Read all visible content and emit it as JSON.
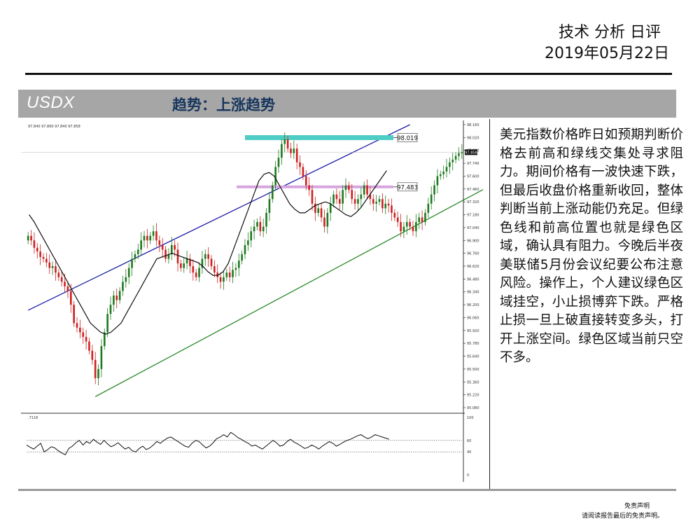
{
  "header": {
    "title": "技术 分析 日评",
    "date": "2019年05月22日"
  },
  "band": {
    "symbol": "USDX",
    "trend": "趋势：上涨趋势"
  },
  "analysis": "美元指数价格昨日如预期判断价格去前高和绿线交集处寻求阻力。期间价格有一波快速下跌，但最后收盘价格重新收回，整体判断当前上涨动能仍充足。但绿色线和前高位置也就是绿色区域，确认具有阻力。今晚后半夜美联储5月份会议纪要公布注意风险。操作上，个人建议绿色区域挂空，小止损博弈下跌。严格止损一旦上破直接转变多头，打开上涨空间。绿色区域当前只空不多。",
  "footer": {
    "line1": "免责声明",
    "line2": "请阅读报告最后的免责声明。"
  },
  "chart_data": {
    "type": "line",
    "symbol": "USDX",
    "info_line": "97.840  97.860  97.840  97.858",
    "ylim": [
      95.08,
      98.16
    ],
    "y_ticks": [
      "98.160",
      "98.020",
      "97.880",
      "97.740",
      "97.600",
      "97.460",
      "97.320",
      "97.180",
      "97.040",
      "96.900",
      "96.760",
      "96.620",
      "96.480",
      "96.340",
      "96.200",
      "96.060",
      "95.920",
      "95.780",
      "95.640",
      "95.500",
      "95.360",
      "95.220",
      "95.080"
    ],
    "last_price_label": "97.858",
    "levels": [
      {
        "name": "resistance",
        "value": 98.019,
        "label": "98.019",
        "color": "#4ecdc4"
      },
      {
        "name": "support",
        "value": 97.483,
        "label": "97.483",
        "color": "#d7a6df"
      }
    ],
    "candle_colors": {
      "up": "#1f7a1f",
      "down": "#cc2222"
    },
    "lines": [
      {
        "name": "upper-channel",
        "color": "#1c1ca8",
        "from": [
          0,
          96.14
        ],
        "to": [
          125,
          98.16
        ]
      },
      {
        "name": "lower-channel",
        "color": "#2e8b2e",
        "from": [
          22,
          95.2
        ],
        "to": [
          182,
          98.04
        ]
      }
    ],
    "close": [
      96.95,
      96.9,
      96.82,
      96.78,
      96.72,
      96.7,
      96.66,
      96.6,
      96.62,
      96.55,
      96.5,
      96.45,
      96.4,
      96.35,
      96.2,
      96.0,
      95.95,
      95.9,
      95.85,
      95.8,
      95.7,
      95.6,
      95.4,
      95.5,
      95.75,
      95.9,
      96.1,
      96.2,
      96.3,
      96.25,
      96.35,
      96.45,
      96.5,
      96.6,
      96.7,
      96.75,
      96.8,
      96.9,
      96.95,
      96.9,
      96.95,
      97.0,
      96.9,
      96.85,
      96.8,
      96.7,
      96.75,
      96.85,
      96.8,
      96.65,
      96.6,
      96.65,
      96.7,
      96.62,
      96.55,
      96.5,
      96.6,
      96.7,
      96.75,
      96.7,
      96.62,
      96.55,
      96.5,
      96.45,
      96.5,
      96.55,
      96.5,
      96.58,
      96.6,
      96.68,
      96.75,
      96.85,
      96.9,
      97.0,
      97.05,
      97.1,
      97.0,
      97.05,
      97.2,
      97.35,
      97.5,
      97.7,
      97.8,
      97.95,
      98.0,
      97.9,
      97.85,
      97.9,
      97.75,
      97.7,
      97.6,
      97.5,
      97.45,
      97.3,
      97.2,
      97.25,
      97.15,
      97.05,
      97.2,
      97.3,
      97.4,
      97.35,
      97.3,
      97.45,
      97.5,
      97.45,
      97.35,
      97.3,
      97.35,
      97.4,
      97.5,
      97.4,
      97.35,
      97.3,
      97.32,
      97.35,
      97.25,
      97.3,
      97.28,
      97.2,
      97.15,
      97.1,
      97.0,
      97.05,
      97.1,
      97.05,
      97.0,
      97.1,
      97.15,
      97.1,
      97.2,
      97.3,
      97.4,
      97.5,
      97.6,
      97.62,
      97.65,
      97.7,
      97.75,
      97.78,
      97.82,
      97.85,
      97.86
    ],
    "ma": [
      97.18,
      97.1,
      97.0,
      96.9,
      96.8,
      96.7,
      96.6,
      96.5,
      96.4,
      96.3,
      96.2,
      96.1,
      96.0,
      95.95,
      95.9,
      95.88,
      95.9,
      95.95,
      96.0,
      96.1,
      96.2,
      96.3,
      96.4,
      96.5,
      96.6,
      96.7,
      96.72,
      96.74,
      96.76,
      96.74,
      96.72,
      96.7,
      96.68,
      96.66,
      96.62,
      96.56,
      96.52,
      96.52,
      96.56,
      96.65,
      96.8,
      96.95,
      97.1,
      97.25,
      97.4,
      97.55,
      97.62,
      97.64,
      97.6,
      97.5,
      97.4,
      97.3,
      97.24,
      97.2,
      97.2,
      97.24,
      97.28,
      97.3,
      97.32,
      97.3,
      97.26,
      97.22,
      97.18,
      97.16,
      97.2,
      97.26,
      97.34,
      97.42,
      97.5,
      97.58,
      97.66
    ],
    "indicator": {
      "label": ".7116",
      "y_ticks": [
        "100",
        "60",
        "40",
        "0"
      ],
      "levels": [
        60,
        40
      ],
      "values": [
        52,
        48,
        45,
        50,
        55,
        40,
        44,
        49,
        47,
        42,
        38,
        35,
        46,
        50,
        56,
        60,
        52,
        58,
        55,
        62,
        57,
        53,
        60,
        54,
        49,
        52,
        56,
        50,
        45,
        48,
        42,
        40,
        46,
        50,
        44,
        47,
        52,
        58,
        55,
        60,
        64,
        66,
        62,
        58,
        54,
        50,
        48,
        55,
        60,
        58,
        52,
        47,
        50,
        56,
        63,
        66,
        70,
        66,
        74,
        70,
        65,
        62,
        58,
        55,
        50,
        52,
        48,
        45,
        50,
        55,
        60,
        56,
        50,
        52,
        58,
        62,
        57,
        54,
        50,
        46,
        48,
        52,
        49,
        45,
        50,
        54,
        58,
        55,
        50,
        53,
        57,
        60,
        62,
        65,
        68,
        70,
        66,
        63,
        66,
        70,
        68,
        66,
        64,
        62
      ]
    }
  }
}
